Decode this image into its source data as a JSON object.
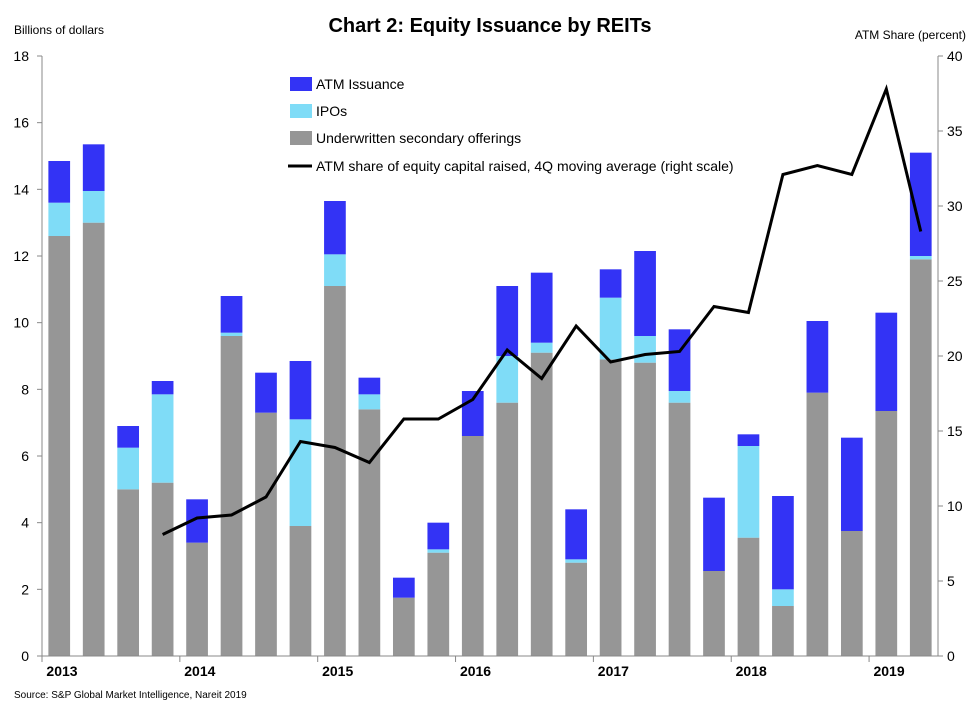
{
  "chart_data": {
    "type": "bar",
    "title": "Chart 2: Equity Issuance by REITs",
    "ylabel_left": "Billions of dollars",
    "ylabel_right": "ATM Share (percent)",
    "ylim_left": [
      0,
      18
    ],
    "ylim_right": [
      0,
      40
    ],
    "yticks_left": [
      0,
      2,
      4,
      6,
      8,
      10,
      12,
      14,
      16,
      18
    ],
    "yticks_right": [
      0,
      5,
      10,
      15,
      20,
      25,
      30,
      35,
      40
    ],
    "years": [
      "2013",
      "2014",
      "2015",
      "2016",
      "2017",
      "2018",
      "2019"
    ],
    "year_start_index": [
      0,
      4,
      8,
      12,
      16,
      20,
      24
    ],
    "quarters": [
      "2013Q1",
      "2013Q2",
      "2013Q3",
      "2013Q4",
      "2014Q1",
      "2014Q2",
      "2014Q3",
      "2014Q4",
      "2015Q1",
      "2015Q2",
      "2015Q3",
      "2015Q4",
      "2016Q1",
      "2016Q2",
      "2016Q3",
      "2016Q4",
      "2017Q1",
      "2017Q2",
      "2017Q3",
      "2017Q4",
      "2018Q1",
      "2018Q2",
      "2018Q3",
      "2018Q4",
      "2019Q1",
      "2019Q2"
    ],
    "stacked": true,
    "series": [
      {
        "name": "Underwritten secondary offerings",
        "color": "#969696",
        "values": [
          12.6,
          13.0,
          5.0,
          5.2,
          3.4,
          9.6,
          7.3,
          3.9,
          11.1,
          7.4,
          1.75,
          3.1,
          6.6,
          7.6,
          9.1,
          2.8,
          8.9,
          8.8,
          7.6,
          2.55,
          3.55,
          1.5,
          7.9,
          3.75,
          7.35,
          11.9
        ]
      },
      {
        "name": "IPOs",
        "color": "#7fdcf7",
        "values": [
          1.0,
          0.95,
          1.25,
          2.65,
          0,
          0.1,
          0,
          3.2,
          0.95,
          0.45,
          0,
          0.1,
          0,
          1.4,
          0.3,
          0.1,
          1.85,
          0.8,
          0.35,
          0,
          2.75,
          0.5,
          0,
          0,
          0,
          0.1
        ]
      },
      {
        "name": "ATM Issuance",
        "color": "#3333f5",
        "values": [
          1.25,
          1.4,
          0.65,
          0.4,
          1.3,
          1.1,
          1.2,
          1.75,
          1.6,
          0.5,
          0.6,
          0.8,
          1.35,
          2.1,
          2.1,
          1.5,
          0.85,
          2.55,
          1.85,
          2.2,
          0.35,
          2.8,
          2.15,
          2.8,
          2.95,
          3.1
        ]
      },
      {
        "name": "ATM share of equity capital raised, 4Q moving average (right scale)",
        "color": "#000000",
        "type": "line",
        "axis": "right",
        "values": [
          null,
          null,
          null,
          8.1,
          9.2,
          9.4,
          10.6,
          14.3,
          13.9,
          12.9,
          15.8,
          15.8,
          17.1,
          20.4,
          18.5,
          22.0,
          19.6,
          20.1,
          20.3,
          23.3,
          22.9,
          32.1,
          32.7,
          32.1,
          37.8,
          28.3
        ]
      }
    ],
    "legend": [
      "ATM Issuance",
      "IPOs",
      "Underwritten secondary offerings",
      "ATM share of equity capital raised, 4Q moving average (right scale)"
    ],
    "legend_position": "top-center",
    "grid": false
  },
  "source": "Source: S&P Global Market Intelligence, Nareit 2019"
}
